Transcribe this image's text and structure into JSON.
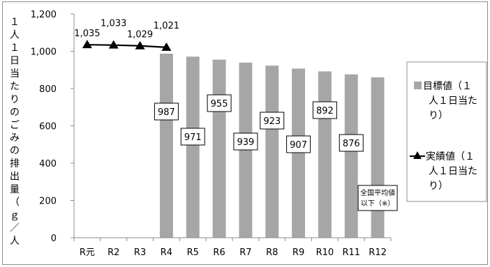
{
  "chart_data": {
    "type": "bar",
    "title": "",
    "xlabel": "",
    "ylabel": "１人１日当たりのごみの排出量（ｇ／人）",
    "ylabel_chars": [
      "１",
      "人",
      "１",
      "日",
      "当",
      "た",
      "り",
      "の",
      "ご",
      "み",
      "の",
      "排",
      "出",
      "量",
      "（",
      "ｇ",
      "／",
      "人"
    ],
    "categories": [
      "R元",
      "R2",
      "R3",
      "R4",
      "R5",
      "R6",
      "R7",
      "R8",
      "R9",
      "R10",
      "R11",
      "R12"
    ],
    "ylim": [
      0,
      1200
    ],
    "yticks": [
      0,
      200,
      400,
      600,
      800,
      1000,
      1200
    ],
    "ytick_labels": [
      "0",
      "200",
      "400",
      "600",
      "800",
      "1,000",
      "1,200"
    ],
    "grid": false,
    "series": [
      {
        "name": "目標値（１人１日当たり）",
        "type": "bar",
        "color": "#a6a6a6",
        "values": [
          null,
          null,
          null,
          987,
          971,
          955,
          939,
          923,
          907,
          892,
          876,
          860
        ],
        "labels": [
          null,
          null,
          null,
          "987",
          "971",
          "955",
          "939",
          "923",
          "907",
          "892",
          "876",
          "全国平均値以下（※）"
        ]
      },
      {
        "name": "実績値（１人１日当たり）",
        "type": "line",
        "color": "#000000",
        "marker": "triangle",
        "values": [
          1035,
          1033,
          1029,
          1021,
          null,
          null,
          null,
          null,
          null,
          null,
          null,
          null
        ],
        "labels": [
          "1,035",
          "1,033",
          "1,029",
          "1,021",
          null,
          null,
          null,
          null,
          null,
          null,
          null,
          null
        ]
      }
    ],
    "legend": {
      "position": "right",
      "entries": [
        {
          "lines": [
            "目標値（１",
            "人１日当た",
            "り）"
          ]
        },
        {
          "lines": [
            "実績値（１",
            "人１日当た",
            "り）"
          ]
        }
      ]
    },
    "annotation": {
      "lines": [
        "全国平均値",
        "以下（※）"
      ]
    }
  }
}
